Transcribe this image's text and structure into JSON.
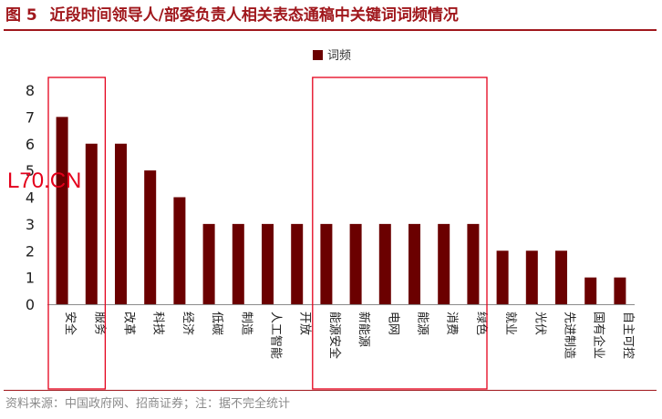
{
  "header": {
    "figure_label": "图 5",
    "title": "近段时间领导人/部委负责人相关表态通稿中关键词词频情况"
  },
  "source_note": "资料来源：中国政府网、招商证券；注：据不完全统计",
  "watermark": "L70.CN",
  "colors": {
    "bar": "#6b0000",
    "accent": "#a0171c",
    "highlight_box": "#e4001b"
  },
  "chart_data": {
    "type": "bar",
    "categories": [
      "安全",
      "服务",
      "改革",
      "科技",
      "经济",
      "低碳",
      "制造",
      "人工智能",
      "开放",
      "能源安全",
      "新能源",
      "电网",
      "能源",
      "消费",
      "绿色",
      "就业",
      "光伏",
      "先进制造",
      "国有企业",
      "自主可控"
    ],
    "series": [
      {
        "name": "词频",
        "values": [
          7,
          6,
          6,
          5,
          4,
          3,
          3,
          3,
          3,
          3,
          3,
          3,
          3,
          3,
          3,
          2,
          2,
          2,
          1,
          1
        ]
      }
    ],
    "ylim": [
      0,
      8
    ],
    "yticks": [
      "0",
      "1",
      "2",
      "3",
      "4",
      "5",
      "6",
      "7",
      "8"
    ],
    "legend": "top-center",
    "grid": false,
    "highlight_groups": [
      {
        "from": "安全",
        "to": "服务"
      },
      {
        "from": "能源安全",
        "to": "绿色"
      }
    ]
  }
}
